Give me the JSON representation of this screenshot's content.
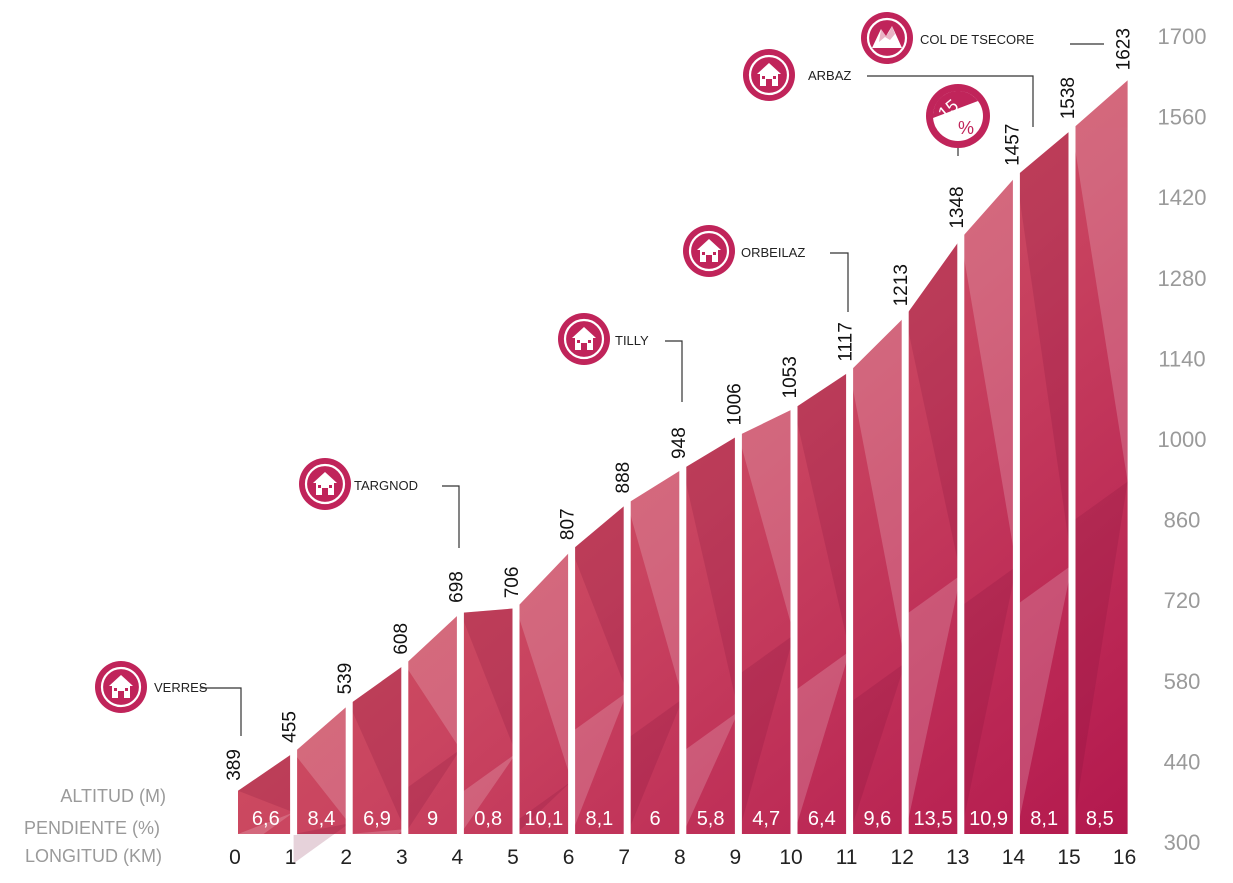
{
  "chart_data": {
    "type": "area",
    "x": [
      0,
      1,
      2,
      3,
      4,
      5,
      6,
      7,
      8,
      9,
      10,
      11,
      12,
      13,
      14,
      15,
      16
    ],
    "x_tick_labels": [
      "0",
      "1",
      "2",
      "3",
      "4",
      "5",
      "6",
      "7",
      "8",
      "9",
      "10",
      "11",
      "12",
      "13",
      "14",
      "15",
      "16"
    ],
    "altitudes": [
      389,
      455,
      539,
      608,
      698,
      706,
      807,
      888,
      948,
      1006,
      1053,
      1117,
      1213,
      1348,
      1457,
      1538,
      1623
    ],
    "altitude_labels": [
      "389",
      "455",
      "539",
      "608",
      "698",
      "706",
      "807",
      "888",
      "948",
      "1006",
      "1053",
      "1117",
      "1213",
      "1348",
      "1457",
      "1538",
      "1623"
    ],
    "gradients": [
      "6,6",
      "8,4",
      "6,9",
      "9",
      "0,8",
      "10,1",
      "8,1",
      "6",
      "5,8",
      "4,7",
      "6,4",
      "9,6",
      "13,5",
      "10,9",
      "8,1",
      "8,5"
    ],
    "ylim": [
      300,
      1700
    ],
    "y_ticks": [
      300,
      440,
      580,
      720,
      860,
      1000,
      1140,
      1280,
      1420,
      1560,
      1700
    ],
    "y_tick_labels": [
      "300",
      "440",
      "580",
      "720",
      "860",
      "1000",
      "1140",
      "1280",
      "1420",
      "1560",
      "1700"
    ],
    "row_labels": {
      "altitude": "ALTITUD (M)",
      "gradient": "PENDIENTE (%)",
      "distance": "LONGITUD (KM)"
    },
    "places": [
      {
        "name": "VERRES",
        "km": 0,
        "icon": "house-icon"
      },
      {
        "name": "TARGNOD",
        "km": 4,
        "icon": "house-icon"
      },
      {
        "name": "TILLY",
        "km": 8,
        "icon": "house-icon"
      },
      {
        "name": "ORBEILAZ",
        "km": 11,
        "icon": "house-icon"
      },
      {
        "name": "ARBAZ",
        "km": 14.3,
        "icon": "house-icon"
      },
      {
        "name": "COL DE TSECORE",
        "km": 16,
        "icon": "mountain-icon"
      }
    ],
    "max_gradient_badge": {
      "value": "15",
      "unit": "%",
      "km": 13
    },
    "colors": {
      "low": "#dd6a5c",
      "high": "#b3184e",
      "icon": "#c0245a",
      "grey": "#9a9a9a"
    }
  }
}
